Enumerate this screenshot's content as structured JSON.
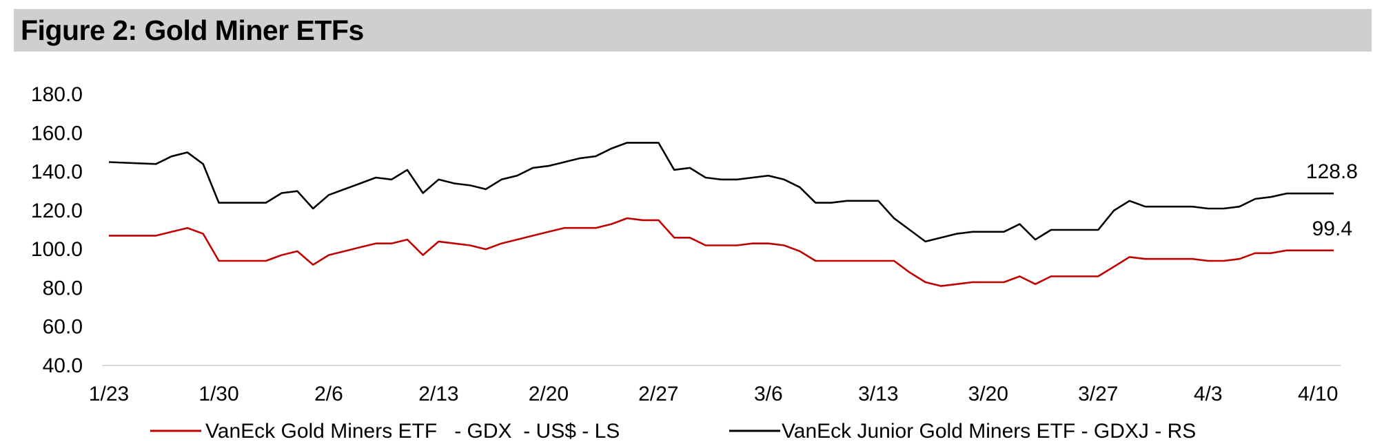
{
  "title": "Figure 2: Gold Miner ETFs",
  "colors": {
    "gdx": "#c00000",
    "gdxj": "#000000",
    "axis": "#d9d9d9",
    "title_bg": "#d0cfcf"
  },
  "chart_data": {
    "type": "line",
    "title": "Figure 2: Gold Miner ETFs",
    "xlabel": "",
    "ylabel": "",
    "ylim": [
      40,
      180
    ],
    "y_ticks": [
      "180.0",
      "160.0",
      "140.0",
      "120.0",
      "100.0",
      "80.0",
      "60.0",
      "40.0"
    ],
    "x_ticks": [
      "1/23",
      "1/30",
      "2/6",
      "2/13",
      "2/20",
      "2/27",
      "3/6",
      "3/13",
      "3/20",
      "3/27",
      "4/3",
      "4/10"
    ],
    "x_range_days": [
      0,
      78
    ],
    "series": [
      {
        "name": "VanEck Gold Miners ETF  - GDX  - US$ - LS",
        "color": "#c00000",
        "days": [
          0,
          3,
          4,
          5,
          6,
          7,
          8,
          9,
          10,
          11,
          12,
          13,
          14,
          15,
          16,
          17,
          18,
          19,
          20,
          21,
          22,
          23,
          24,
          25,
          26,
          27,
          28,
          29,
          30,
          31,
          32,
          33,
          34,
          35,
          36,
          37,
          38,
          39,
          40,
          41,
          42,
          43,
          44,
          45,
          46,
          47,
          48,
          49,
          50,
          51,
          52,
          53,
          54,
          55,
          56,
          57,
          58,
          59,
          60,
          61,
          62,
          63,
          64,
          65,
          66,
          67,
          68,
          69,
          70,
          71,
          72,
          73,
          74,
          75,
          76,
          77,
          78
        ],
        "values": [
          107,
          107,
          109,
          111,
          108,
          94,
          94,
          94,
          94,
          97,
          99,
          92,
          97,
          99,
          101,
          103,
          103,
          105,
          97,
          104,
          103,
          102,
          100,
          103,
          105,
          107,
          109,
          111,
          111,
          111,
          113,
          116,
          115,
          115,
          106,
          106,
          102,
          102,
          102,
          103,
          103,
          102,
          99,
          94,
          94,
          94,
          94,
          94,
          94,
          88,
          83,
          81,
          82,
          83,
          83,
          83,
          86,
          82,
          86,
          86,
          86,
          86,
          91,
          96,
          95,
          95,
          95,
          95,
          94,
          94,
          95,
          98,
          98,
          99.4,
          99.4,
          99.4,
          99.4
        ]
      },
      {
        "name": "VanEck Junior Gold Miners ETF - GDXJ - RS",
        "color": "#000000",
        "days": [
          0,
          3,
          4,
          5,
          6,
          7,
          8,
          9,
          10,
          11,
          12,
          13,
          14,
          15,
          16,
          17,
          18,
          19,
          20,
          21,
          22,
          23,
          24,
          25,
          26,
          27,
          28,
          29,
          30,
          31,
          32,
          33,
          34,
          35,
          36,
          37,
          38,
          39,
          40,
          41,
          42,
          43,
          44,
          45,
          46,
          47,
          48,
          49,
          50,
          51,
          52,
          53,
          54,
          55,
          56,
          57,
          58,
          59,
          60,
          61,
          62,
          63,
          64,
          65,
          66,
          67,
          68,
          69,
          70,
          71,
          72,
          73,
          74,
          75,
          76,
          77,
          78
        ],
        "values": [
          145,
          144,
          148,
          150,
          144,
          124,
          124,
          124,
          124,
          129,
          130,
          121,
          128,
          131,
          134,
          137,
          136,
          141,
          129,
          136,
          134,
          133,
          131,
          136,
          138,
          142,
          143,
          145,
          147,
          148,
          152,
          155,
          155,
          155,
          141,
          142,
          137,
          136,
          136,
          137,
          138,
          136,
          132,
          124,
          124,
          125,
          125,
          125,
          116,
          110,
          104,
          106,
          108,
          109,
          109,
          109,
          113,
          105,
          110,
          110,
          110,
          110,
          120,
          125,
          122,
          122,
          122,
          122,
          121,
          121,
          122,
          126,
          127,
          128.8,
          128.8,
          128.8,
          128.8
        ]
      }
    ],
    "end_labels": {
      "gdx": "99.4",
      "gdxj": "128.8"
    },
    "legend": [
      {
        "label": "VanEck Gold Miners ETF   - GDX  - US$ - LS",
        "color": "#c00000"
      },
      {
        "label": "VanEck Junior Gold Miners ETF - GDXJ - RS",
        "color": "#000000"
      }
    ],
    "legend_position": "bottom",
    "grid": false
  }
}
